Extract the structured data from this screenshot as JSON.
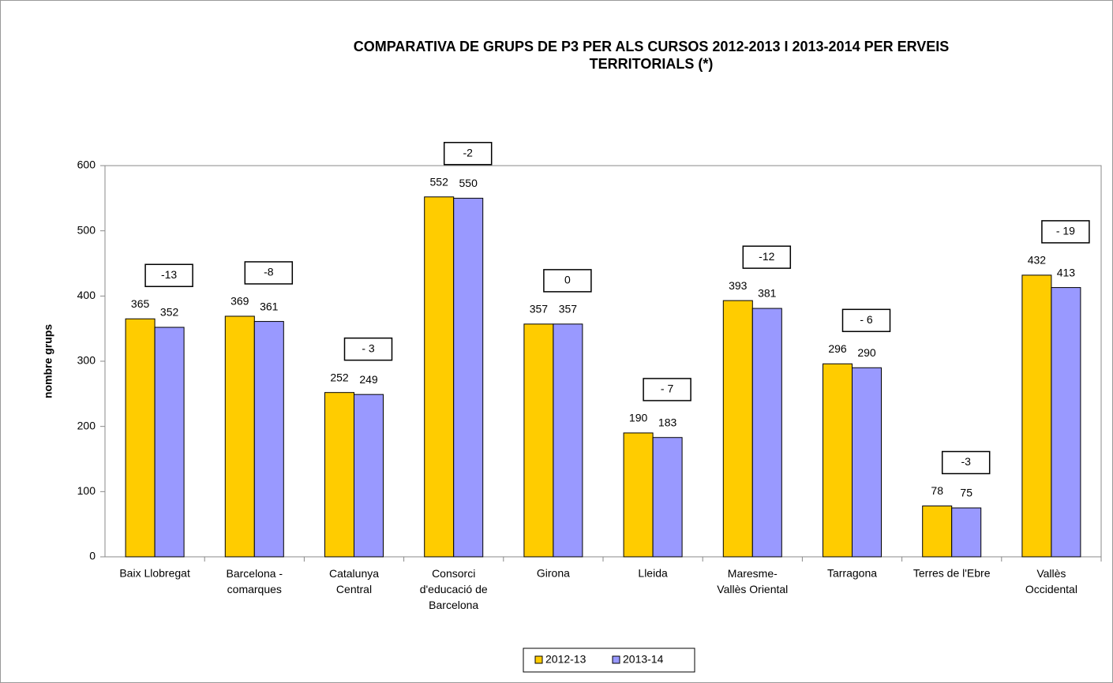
{
  "chart_data": {
    "type": "bar",
    "title": "COMPARATIVA DE GRUPS DE P3 PER ALS CURSOS 2012-2013 I 2013-2014 PER ERVEIS\nTERRITORIALS (*)",
    "y_label": "nombre grups",
    "categories": [
      "Baix Llobregat",
      "Barcelona -\ncomarques",
      "Catalunya\nCentral",
      "Consorci\nd'educació de\nBarcelona",
      "Girona",
      "Lleida",
      "Maresme-\nVallès Oriental",
      "Tarragona",
      "Terres de l'Ebre",
      "Vallès\nOccidental"
    ],
    "series": [
      {
        "name": "2012-13",
        "color": "#ffcc00",
        "values": [
          365,
          369,
          252,
          552,
          357,
          190,
          393,
          296,
          78,
          432
        ]
      },
      {
        "name": "2013-14",
        "color": "#9999ff",
        "values": [
          352,
          361,
          249,
          550,
          357,
          183,
          381,
          290,
          75,
          413
        ]
      }
    ],
    "annotations": [
      "-13",
      "-8",
      "- 3",
      "-2",
      "0",
      "- 7",
      "-12",
      "- 6",
      "-3",
      "- 19"
    ],
    "ylim": [
      0,
      600
    ],
    "yticks": [
      0,
      100,
      200,
      300,
      400,
      500,
      600
    ],
    "legend": "bottom"
  }
}
